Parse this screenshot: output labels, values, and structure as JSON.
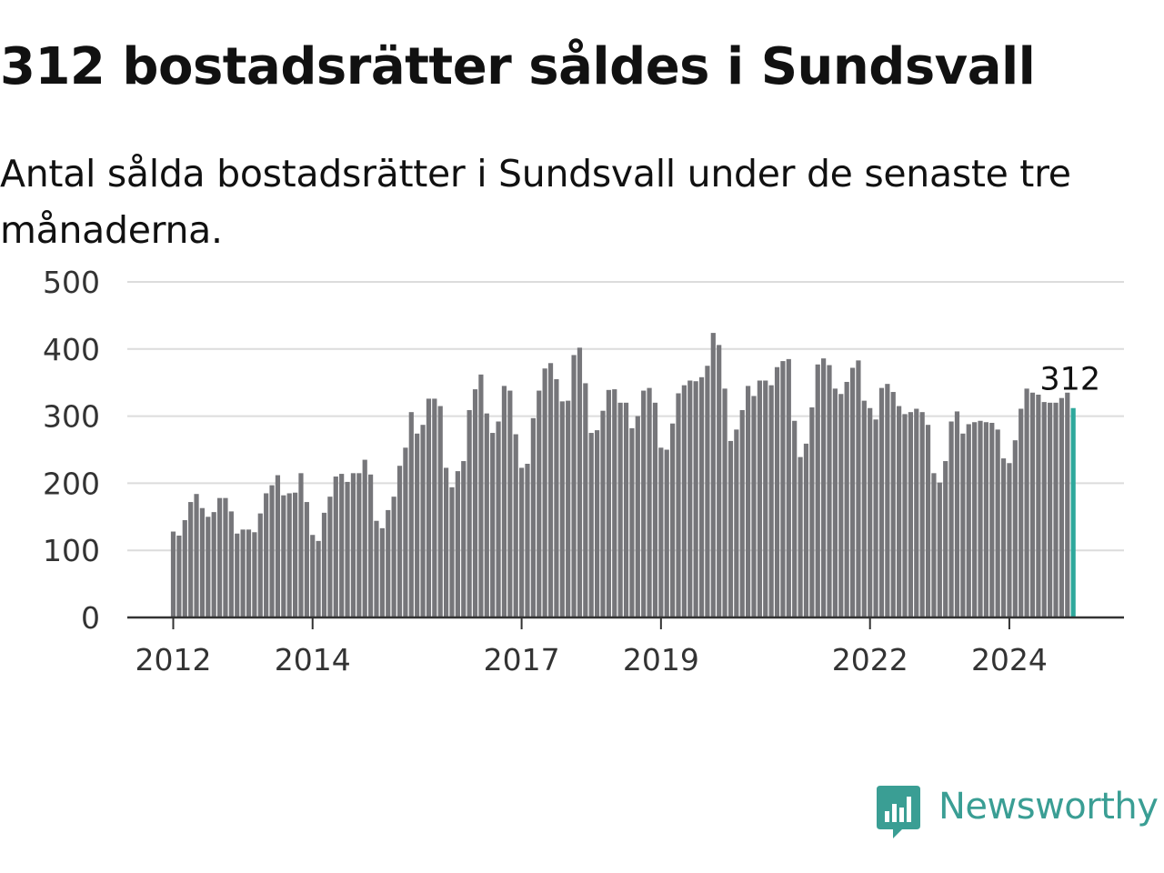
{
  "title": "312 bostadsrätter såldes i Sundsvall",
  "subtitle": "Antal sålda bostadsrätter i Sundsvall under de senaste tre månaderna.",
  "brand": {
    "name": "Newsworthy",
    "color": "#3a9e94"
  },
  "colors": {
    "bar": "#76767a",
    "highlight": "#2ea89c",
    "grid": "#dcdcdc",
    "axis": "#333333"
  },
  "chart_data": {
    "type": "bar",
    "title": "312 bostadsrätter såldes i Sundsvall",
    "subtitle": "Antal sålda bostadsrätter i Sundsvall under de senaste tre månaderna.",
    "xlabel": "",
    "ylabel": "",
    "ylim": [
      0,
      500
    ],
    "yticks": [
      "0",
      "100",
      "200",
      "300",
      "400",
      "500"
    ],
    "xticks": [
      {
        "label": "2012",
        "index": 0
      },
      {
        "label": "2014",
        "index": 24
      },
      {
        "label": "2017",
        "index": 60
      },
      {
        "label": "2019",
        "index": 84
      },
      {
        "label": "2022",
        "index": 120
      },
      {
        "label": "2024",
        "index": 144
      }
    ],
    "grid": true,
    "highlight_last": true,
    "annotation": {
      "text": "312",
      "index": 155
    },
    "values": [
      128,
      122,
      145,
      172,
      184,
      163,
      150,
      157,
      178,
      178,
      158,
      125,
      131,
      131,
      127,
      155,
      185,
      197,
      212,
      182,
      185,
      186,
      215,
      172,
      123,
      114,
      156,
      180,
      210,
      214,
      202,
      215,
      215,
      235,
      213,
      144,
      133,
      160,
      180,
      226,
      253,
      306,
      274,
      287,
      326,
      326,
      315,
      223,
      194,
      218,
      233,
      309,
      340,
      362,
      304,
      275,
      292,
      345,
      338,
      273,
      223,
      229,
      297,
      338,
      371,
      379,
      355,
      322,
      323,
      391,
      402,
      349,
      275,
      279,
      308,
      339,
      340,
      320,
      320,
      282,
      300,
      338,
      342,
      320,
      253,
      250,
      289,
      334,
      346,
      353,
      352,
      358,
      375,
      424,
      406,
      341,
      263,
      280,
      309,
      345,
      330,
      353,
      353,
      346,
      373,
      382,
      385,
      293,
      239,
      259,
      313,
      377,
      386,
      376,
      341,
      333,
      351,
      372,
      383,
      323,
      312,
      295,
      342,
      348,
      336,
      315,
      303,
      306,
      311,
      306,
      287,
      215,
      201,
      233,
      292,
      307,
      274,
      288,
      291,
      293,
      291,
      290,
      280,
      237,
      230,
      264,
      311,
      341,
      335,
      332,
      321,
      320,
      320,
      327,
      335,
      312
    ]
  }
}
